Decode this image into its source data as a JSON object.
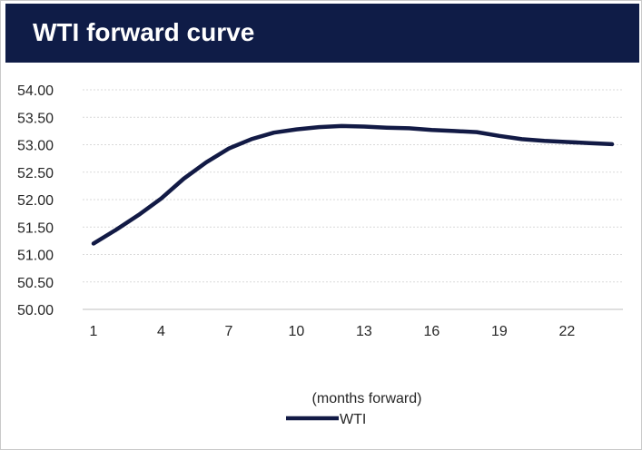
{
  "header": {
    "title": "WTI forward curve"
  },
  "colors": {
    "header_bg": "#0f1c47",
    "series": "#121a45",
    "grid": "#d9d9d9"
  },
  "chart_data": {
    "type": "line",
    "title": "WTI forward curve",
    "xlabel": "(months forward)",
    "ylabel": "",
    "x": [
      1,
      2,
      3,
      4,
      5,
      6,
      7,
      8,
      9,
      10,
      11,
      12,
      13,
      14,
      15,
      16,
      17,
      18,
      19,
      20,
      21,
      22,
      23,
      24
    ],
    "x_ticks": [
      "1",
      "4",
      "7",
      "10",
      "13",
      "16",
      "19",
      "22"
    ],
    "x_tick_values": [
      1,
      4,
      7,
      10,
      13,
      16,
      19,
      22
    ],
    "y_ticks": [
      "54.00",
      "53.50",
      "53.00",
      "52.50",
      "52.00",
      "51.50",
      "51.00",
      "50.50",
      "50.00"
    ],
    "y_tick_values": [
      54.0,
      53.5,
      53.0,
      52.5,
      52.0,
      51.5,
      51.0,
      50.5,
      50.0
    ],
    "ylim": [
      50.0,
      54.0
    ],
    "xlim": [
      1,
      24
    ],
    "grid": "horizontal",
    "legend_position": "bottom",
    "series": [
      {
        "name": "WTI",
        "values": [
          51.2,
          51.45,
          51.72,
          52.02,
          52.38,
          52.68,
          52.93,
          53.1,
          53.22,
          53.28,
          53.32,
          53.34,
          53.33,
          53.31,
          53.3,
          53.27,
          53.25,
          53.23,
          53.16,
          53.1,
          53.07,
          53.05,
          53.03,
          53.01
        ]
      }
    ]
  }
}
